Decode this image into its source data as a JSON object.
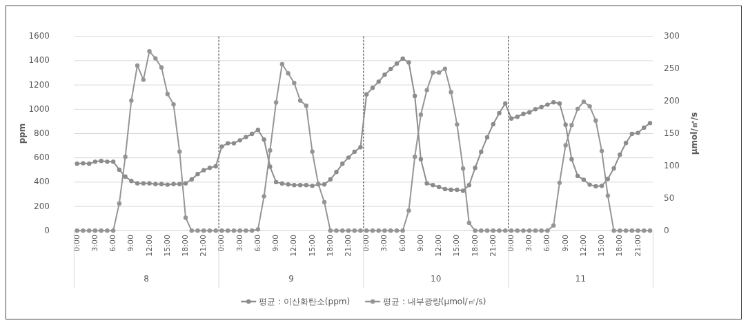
{
  "chart_data": {
    "type": "line",
    "ylabel": "ppm",
    "y2label": "μmol/㎡/s",
    "categories": [
      "0:00",
      null,
      null,
      "3:00",
      null,
      null,
      "6:00",
      null,
      null,
      "9:00",
      null,
      null,
      "12:00",
      null,
      null,
      "15:00",
      null,
      null,
      "18:00",
      null,
      null,
      "21:00",
      null,
      null,
      "0:00",
      null,
      null,
      "3:00",
      null,
      null,
      "6:00",
      null,
      null,
      "9:00",
      null,
      null,
      "12:00",
      null,
      null,
      "15:00",
      null,
      null,
      "18:00",
      null,
      null,
      "21:00",
      null,
      null,
      "0:00",
      null,
      null,
      "3:00",
      null,
      null,
      "6:00",
      null,
      null,
      "9:00",
      null,
      null,
      "12:00",
      null,
      null,
      "15:00",
      null,
      null,
      "18:00",
      null,
      null,
      "21:00",
      null,
      null,
      "0:00",
      null,
      null,
      "3:00",
      null,
      null,
      "6:00",
      null,
      null,
      "9:00",
      null,
      null,
      "12:00",
      null,
      null,
      "15:00",
      null,
      null,
      "18:00",
      null,
      null,
      "21:00",
      null,
      null
    ],
    "series": [
      {
        "name": "평균 : 이산화탄소(ppm)",
        "color": "#8c8c8c",
        "axis": "y",
        "values": [
          551,
          555,
          551,
          568,
          574,
          568,
          568,
          502,
          445,
          409,
          390,
          390,
          390,
          384,
          384,
          379,
          384,
          384,
          390,
          422,
          466,
          498,
          517,
          530,
          693,
          720,
          720,
          744,
          771,
          797,
          830,
          750,
          527,
          400,
          388,
          381,
          375,
          375,
          375,
          369,
          381,
          381,
          422,
          483,
          551,
          602,
          650,
          688,
          1123,
          1176,
          1227,
          1284,
          1331,
          1375,
          1417,
          1385,
          1110,
          589,
          390,
          375,
          360,
          343,
          337,
          337,
          328,
          375,
          517,
          650,
          769,
          877,
          968,
          1047,
          924,
          938,
          962,
          975,
          1000,
          1019,
          1038,
          1057,
          1047,
          873,
          589,
          451,
          419,
          379,
          366,
          369,
          426,
          513,
          625,
          722,
          797,
          805,
          849,
          886
        ]
      },
      {
        "name": "평균 : 내부광량(μmol/㎡/s)",
        "color": "#959595",
        "axis": "y2",
        "values": [
          0,
          0,
          0,
          0,
          0,
          0,
          0,
          42,
          114,
          201,
          255,
          233,
          277,
          266,
          252,
          211,
          195,
          122,
          20,
          0,
          0,
          0,
          0,
          0,
          0,
          0,
          0,
          0,
          0,
          0,
          2,
          53,
          124,
          198,
          257,
          243,
          228,
          201,
          193,
          122,
          72,
          44,
          0,
          0,
          0,
          0,
          0,
          0,
          0,
          0,
          0,
          0,
          0,
          0,
          0,
          31,
          114,
          179,
          217,
          244,
          244,
          250,
          214,
          164,
          96,
          12,
          0,
          0,
          0,
          0,
          0,
          0,
          0,
          0,
          0,
          0,
          0,
          0,
          0,
          8,
          74,
          132,
          163,
          188,
          199,
          192,
          170,
          123,
          54,
          0,
          0,
          0,
          0,
          0,
          0,
          0
        ]
      }
    ],
    "ylim": [
      0,
      1600
    ],
    "yticks": [
      0,
      200,
      400,
      600,
      800,
      1000,
      1200,
      1400,
      1600
    ],
    "y2lim": [
      0,
      300
    ],
    "y2ticks": [
      0,
      50,
      100,
      150,
      200,
      250,
      300
    ],
    "annotations": [
      "8",
      "9",
      "10",
      "11"
    ],
    "grid": "y",
    "legend": "bottom",
    "marker": "circle",
    "line_style": "solid"
  }
}
